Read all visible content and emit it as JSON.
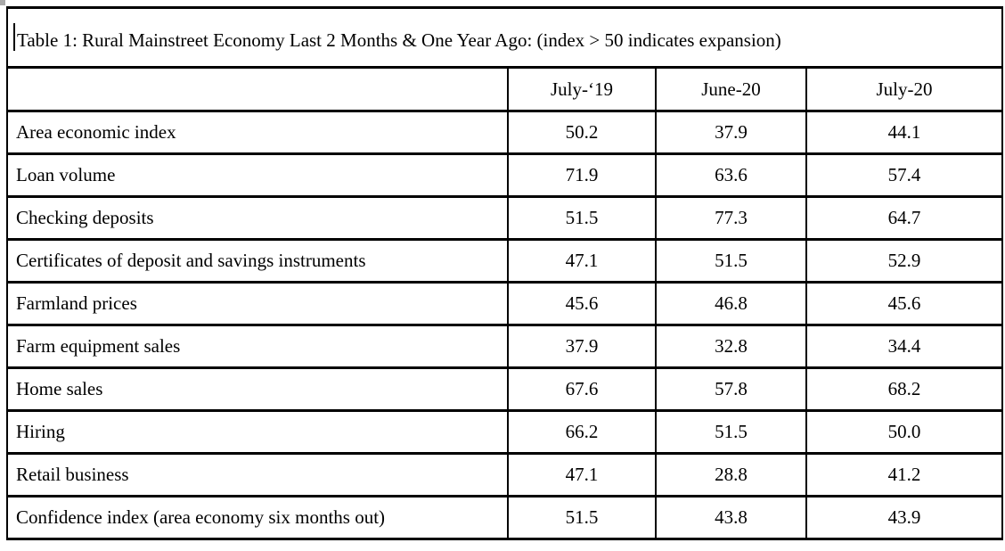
{
  "document": {
    "colors": {
      "border": "#000000",
      "text": "#000000",
      "background": "#ffffff"
    },
    "table": {
      "title": "Table 1: Rural Mainstreet Economy Last 2 Months & One Year Ago: (index > 50 indicates expansion)",
      "columns": [
        "July-‘19",
        "June-20",
        "July-20"
      ],
      "rows": [
        {
          "label": "Area economic index",
          "values": [
            "50.2",
            "37.9",
            "44.1"
          ]
        },
        {
          "label": "Loan volume",
          "values": [
            "71.9",
            "63.6",
            "57.4"
          ]
        },
        {
          "label": "Checking deposits",
          "values": [
            "51.5",
            "77.3",
            "64.7"
          ]
        },
        {
          "label": "Certificates of deposit and savings instruments",
          "values": [
            "47.1",
            "51.5",
            "52.9"
          ]
        },
        {
          "label": "Farmland prices",
          "values": [
            "45.6",
            "46.8",
            "45.6"
          ]
        },
        {
          "label": "Farm equipment sales",
          "values": [
            "37.9",
            "32.8",
            "34.4"
          ]
        },
        {
          "label": "Home sales",
          "values": [
            "67.6",
            "57.8",
            "68.2"
          ]
        },
        {
          "label": "Hiring",
          "values": [
            "66.2",
            "51.5",
            "50.0"
          ]
        },
        {
          "label": "Retail business",
          "values": [
            "47.1",
            "28.8",
            "41.2"
          ]
        },
        {
          "label": "Confidence index (area economy six months out)",
          "values": [
            "51.5",
            "43.8",
            "43.9"
          ]
        }
      ]
    }
  },
  "chart_data": {
    "type": "table",
    "title": "Table 1: Rural Mainstreet Economy Last 2 Months & One Year Ago: (index > 50 indicates expansion)",
    "columns": [
      "",
      "July-‘19",
      "June-20",
      "July-20"
    ],
    "rows": [
      [
        "Area economic index",
        50.2,
        37.9,
        44.1
      ],
      [
        "Loan volume",
        71.9,
        63.6,
        57.4
      ],
      [
        "Checking deposits",
        51.5,
        77.3,
        64.7
      ],
      [
        "Certificates of deposit and savings instruments",
        47.1,
        51.5,
        52.9
      ],
      [
        "Farmland prices",
        45.6,
        46.8,
        45.6
      ],
      [
        "Farm equipment sales",
        37.9,
        32.8,
        34.4
      ],
      [
        "Home sales",
        67.6,
        57.8,
        68.2
      ],
      [
        "Hiring",
        66.2,
        51.5,
        50.0
      ],
      [
        "Retail business",
        47.1,
        28.8,
        41.2
      ],
      [
        "Confidence index (area economy six months out)",
        51.5,
        43.8,
        43.9
      ]
    ]
  }
}
